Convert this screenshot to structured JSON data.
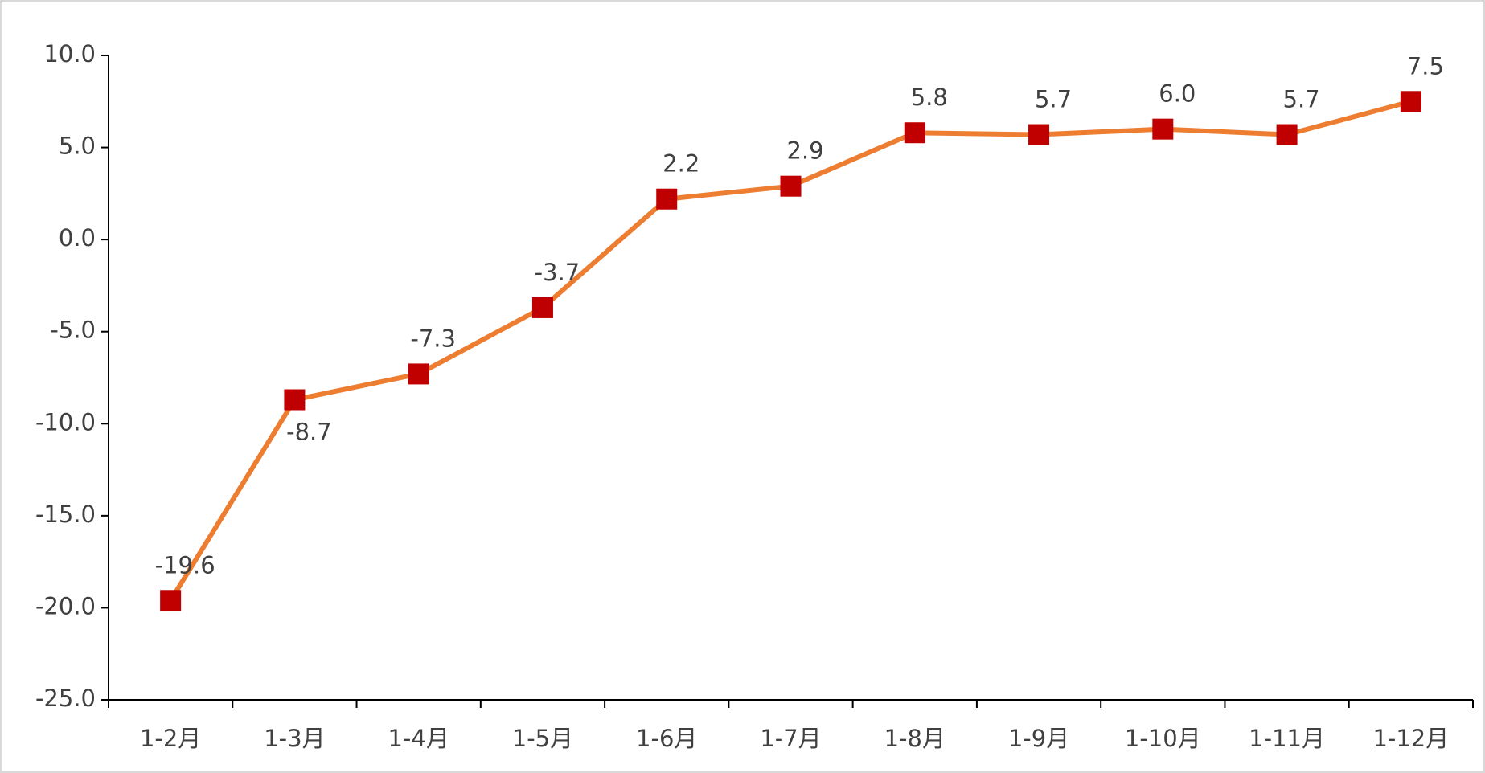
{
  "chart_data": {
    "type": "line",
    "categories": [
      "1-2月",
      "1-3月",
      "1-4月",
      "1-5月",
      "1-6月",
      "1-7月",
      "1-8月",
      "1-9月",
      "1-10月",
      "1-11月",
      "1-12月"
    ],
    "values": [
      -19.6,
      -8.7,
      -7.3,
      -3.7,
      2.2,
      2.9,
      5.8,
      5.7,
      6.0,
      5.7,
      7.5
    ],
    "value_labels": [
      "-19.6",
      "-8.7",
      "-7.3",
      "-3.7",
      "2.2",
      "2.9",
      "5.8",
      "5.7",
      "6.0",
      "5.7",
      "7.5"
    ],
    "color": "#ED7D31",
    "marker_color": "#C00000",
    "ylim": [
      -25,
      10
    ],
    "yticks": [
      {
        "value": -25,
        "label": "-25.0"
      },
      {
        "value": -20,
        "label": "-20.0"
      },
      {
        "value": -15,
        "label": "-15.0"
      },
      {
        "value": -10,
        "label": "-10.0"
      },
      {
        "value": -5,
        "label": "-5.0"
      },
      {
        "value": 0,
        "label": "0.0"
      },
      {
        "value": 5,
        "label": "5.0"
      },
      {
        "value": 10,
        "label": "10.0"
      }
    ],
    "grid": false
  }
}
